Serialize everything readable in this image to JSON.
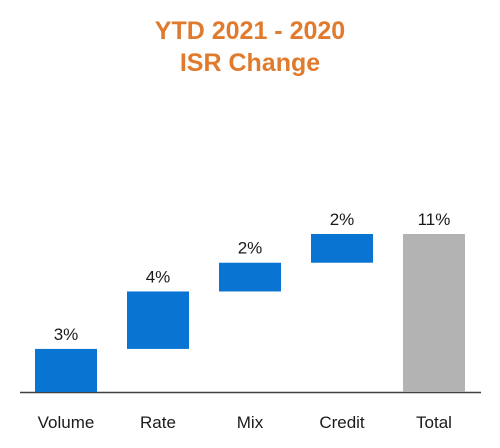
{
  "colors": {
    "title": "#e07b2e",
    "increase_bar": "#0a74d3",
    "total_bar": "#b3b3b3",
    "baseline": "#404040"
  },
  "chart_data": {
    "type": "bar",
    "subtype": "waterfall",
    "title": [
      "YTD 2021 - 2020",
      "ISR Change"
    ],
    "xlabel": "",
    "ylabel": "",
    "categories": [
      "Volume",
      "Rate",
      "Mix",
      "Credit",
      "Total"
    ],
    "values": [
      3,
      4,
      2,
      2,
      11
    ],
    "value_labels": [
      "3%",
      "4%",
      "2%",
      "2%",
      "11%"
    ],
    "kinds": [
      "increase",
      "increase",
      "increase",
      "increase",
      "total"
    ],
    "ylim": [
      0,
      11
    ],
    "grid": false,
    "legend": "none"
  }
}
